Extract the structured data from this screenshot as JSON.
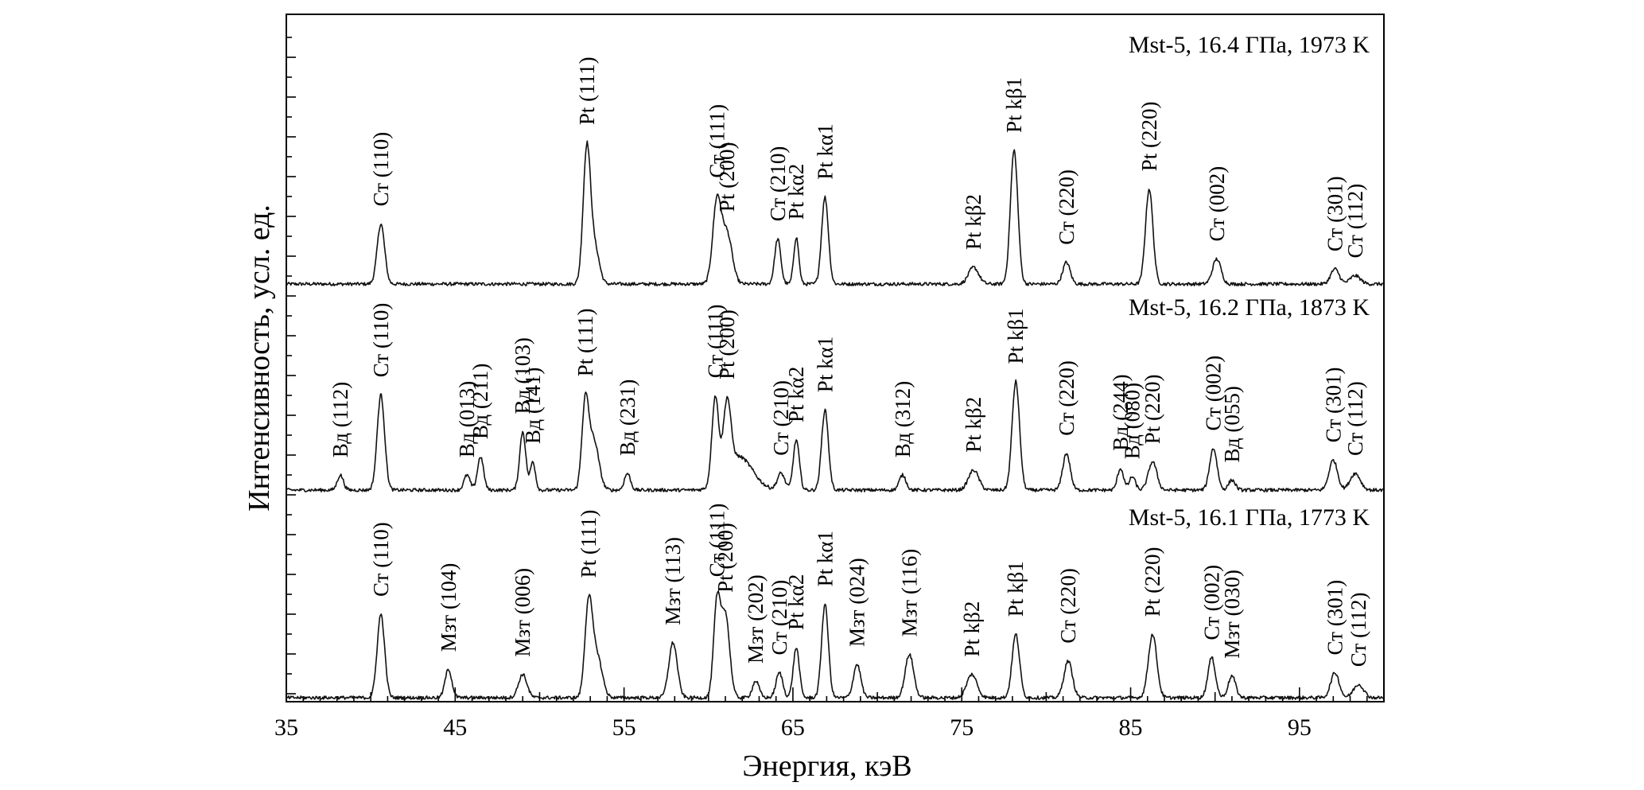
{
  "chart_data": {
    "type": "line",
    "xlabel": "Энергия, кэВ",
    "ylabel": "Интенсивность, усл. ед.",
    "xlim": [
      35,
      100
    ],
    "xticks": [
      "35",
      "45",
      "55",
      "65",
      "75",
      "85",
      "95"
    ],
    "grid": false,
    "legend": "none",
    "series": [
      {
        "annotation": "Mst-5, 16.4 ГПа, 1973 K",
        "noise_level": 0.02,
        "peaks": [
          {
            "x": 40.6,
            "h": 0.36,
            "w": 0.22,
            "label": "Ст (110)"
          },
          {
            "x": 52.8,
            "h": 0.82,
            "w": 0.22,
            "label": "Pt (111)"
          },
          {
            "x": 53.3,
            "h": 0.2,
            "w": 0.25,
            "label": ""
          },
          {
            "x": 60.5,
            "h": 0.49,
            "w": 0.25,
            "label": "Ст (111)"
          },
          {
            "x": 61.1,
            "h": 0.3,
            "w": 0.3,
            "label": "Pt (200)"
          },
          {
            "x": 64.1,
            "h": 0.27,
            "w": 0.18,
            "label": "Ст (210)"
          },
          {
            "x": 65.2,
            "h": 0.28,
            "w": 0.15,
            "label": "Pt kα2"
          },
          {
            "x": 66.9,
            "h": 0.52,
            "w": 0.2,
            "label": "Pt kα1"
          },
          {
            "x": 75.7,
            "h": 0.1,
            "w": 0.3,
            "label": "Pt kβ2"
          },
          {
            "x": 78.1,
            "h": 0.8,
            "w": 0.22,
            "label": "Pt kβ1"
          },
          {
            "x": 81.2,
            "h": 0.13,
            "w": 0.22,
            "label": "Ст (220)"
          },
          {
            "x": 86.1,
            "h": 0.57,
            "w": 0.22,
            "label": "Pt (220)"
          },
          {
            "x": 90.1,
            "h": 0.15,
            "w": 0.25,
            "label": "Ст (002)"
          },
          {
            "x": 97.1,
            "h": 0.09,
            "w": 0.25,
            "label": "Ст (301)"
          },
          {
            "x": 98.3,
            "h": 0.05,
            "w": 0.3,
            "label": "Ст (112)"
          }
        ]
      },
      {
        "annotation": "Mst-5, 16.2 ГПа, 1873 K",
        "noise_level": 0.02,
        "peaks": [
          {
            "x": 38.2,
            "h": 0.09,
            "w": 0.18,
            "label": "Вд (112)"
          },
          {
            "x": 40.6,
            "h": 0.57,
            "w": 0.22,
            "label": "Ст (110)"
          },
          {
            "x": 45.7,
            "h": 0.09,
            "w": 0.18,
            "label": "Вд (013)"
          },
          {
            "x": 46.5,
            "h": 0.2,
            "w": 0.18,
            "label": "Вд (211)"
          },
          {
            "x": 49.0,
            "h": 0.35,
            "w": 0.18,
            "label": "Вд (103)"
          },
          {
            "x": 49.6,
            "h": 0.17,
            "w": 0.15,
            "label": "Вд (141)"
          },
          {
            "x": 52.7,
            "h": 0.5,
            "w": 0.2,
            "label": "Pt (111)"
          },
          {
            "x": 53.2,
            "h": 0.3,
            "w": 0.3,
            "label": ""
          },
          {
            "x": 55.2,
            "h": 0.1,
            "w": 0.18,
            "label": "Вд (231)"
          },
          {
            "x": 60.4,
            "h": 0.52,
            "w": 0.2,
            "label": "Ст (111)"
          },
          {
            "x": 61.1,
            "h": 0.42,
            "w": 0.22,
            "label": "Pt (200)"
          },
          {
            "x": 61.8,
            "h": 0.2,
            "w": 0.8,
            "label": ""
          },
          {
            "x": 64.3,
            "h": 0.1,
            "w": 0.22,
            "label": "Ст (210)"
          },
          {
            "x": 65.2,
            "h": 0.3,
            "w": 0.18,
            "label": "Pt kα2"
          },
          {
            "x": 66.9,
            "h": 0.48,
            "w": 0.2,
            "label": "Pt kα1"
          },
          {
            "x": 71.5,
            "h": 0.09,
            "w": 0.2,
            "label": "Вд (312)"
          },
          {
            "x": 75.7,
            "h": 0.12,
            "w": 0.3,
            "label": "Pt kβ2"
          },
          {
            "x": 78.2,
            "h": 0.65,
            "w": 0.22,
            "label": "Pt kβ1"
          },
          {
            "x": 81.2,
            "h": 0.22,
            "w": 0.22,
            "label": "Ст (220)"
          },
          {
            "x": 84.4,
            "h": 0.13,
            "w": 0.18,
            "label": "Вд (244)"
          },
          {
            "x": 85.1,
            "h": 0.08,
            "w": 0.18,
            "label": "Вд (080)"
          },
          {
            "x": 86.3,
            "h": 0.17,
            "w": 0.25,
            "label": "Pt (220)"
          },
          {
            "x": 89.9,
            "h": 0.25,
            "w": 0.22,
            "label": "Ст (002)"
          },
          {
            "x": 91.0,
            "h": 0.06,
            "w": 0.2,
            "label": "Вд (055)"
          },
          {
            "x": 97.0,
            "h": 0.18,
            "w": 0.25,
            "label": "Ст (301)"
          },
          {
            "x": 98.3,
            "h": 0.1,
            "w": 0.3,
            "label": "Ст (112)"
          }
        ]
      },
      {
        "annotation": "Mst-5, 16.1 ГПа, 1773 K",
        "noise_level": 0.02,
        "peaks": [
          {
            "x": 40.6,
            "h": 0.5,
            "w": 0.22,
            "label": "Ст (110)"
          },
          {
            "x": 44.6,
            "h": 0.17,
            "w": 0.2,
            "label": "Мзт (104)"
          },
          {
            "x": 49.0,
            "h": 0.14,
            "w": 0.25,
            "label": "Мзт (006)"
          },
          {
            "x": 52.9,
            "h": 0.55,
            "w": 0.22,
            "label": "Pt (111)"
          },
          {
            "x": 53.4,
            "h": 0.25,
            "w": 0.3,
            "label": ""
          },
          {
            "x": 57.9,
            "h": 0.33,
            "w": 0.25,
            "label": "Мзт (113)"
          },
          {
            "x": 60.5,
            "h": 0.55,
            "w": 0.2,
            "label": "Ст (111)"
          },
          {
            "x": 61.0,
            "h": 0.5,
            "w": 0.25,
            "label": "Pt (200)"
          },
          {
            "x": 62.8,
            "h": 0.1,
            "w": 0.2,
            "label": "Мзт (202)"
          },
          {
            "x": 64.2,
            "h": 0.15,
            "w": 0.2,
            "label": "Ст (210)"
          },
          {
            "x": 65.2,
            "h": 0.3,
            "w": 0.18,
            "label": "Pt kα2"
          },
          {
            "x": 66.9,
            "h": 0.56,
            "w": 0.2,
            "label": "Pt kα1"
          },
          {
            "x": 68.8,
            "h": 0.2,
            "w": 0.22,
            "label": "Мзт (024)"
          },
          {
            "x": 71.9,
            "h": 0.26,
            "w": 0.25,
            "label": "Мзт (116)"
          },
          {
            "x": 75.6,
            "h": 0.14,
            "w": 0.3,
            "label": "Pt kβ2"
          },
          {
            "x": 78.2,
            "h": 0.38,
            "w": 0.22,
            "label": "Pt kβ1"
          },
          {
            "x": 81.3,
            "h": 0.22,
            "w": 0.25,
            "label": "Ст (220)"
          },
          {
            "x": 86.3,
            "h": 0.38,
            "w": 0.25,
            "label": "Pt (220)"
          },
          {
            "x": 89.8,
            "h": 0.24,
            "w": 0.22,
            "label": "Ст (002)"
          },
          {
            "x": 91.0,
            "h": 0.13,
            "w": 0.22,
            "label": "Мзт (030)"
          },
          {
            "x": 97.1,
            "h": 0.15,
            "w": 0.25,
            "label": "Ст (301)"
          },
          {
            "x": 98.5,
            "h": 0.08,
            "w": 0.3,
            "label": "Ст (112)"
          }
        ]
      }
    ]
  }
}
